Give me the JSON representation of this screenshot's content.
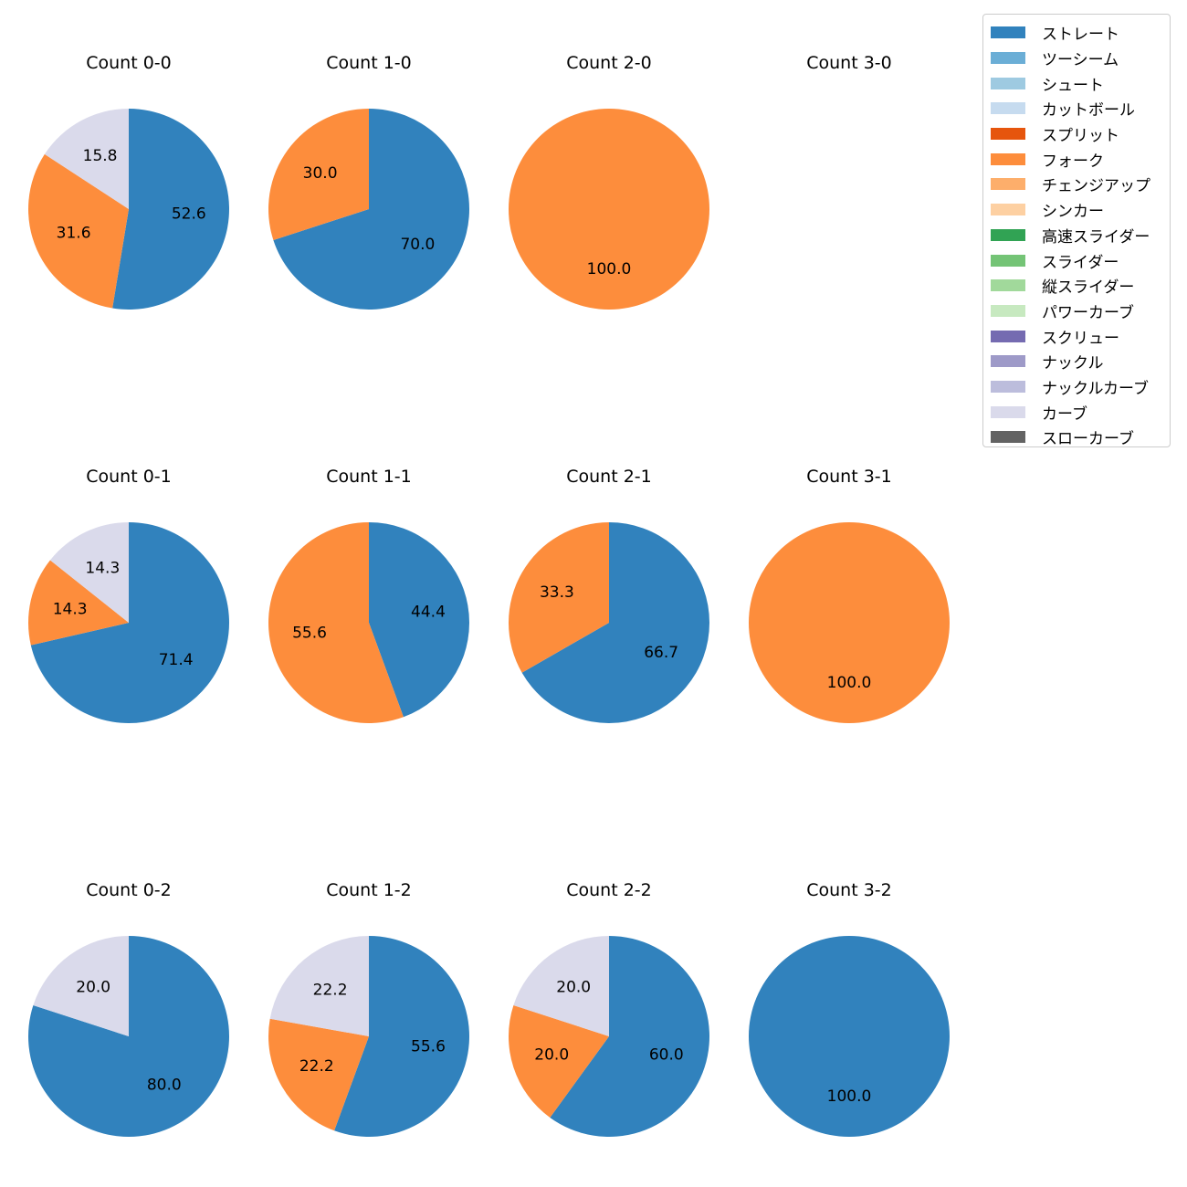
{
  "chart_data": {
    "type": "pie",
    "legend": {
      "placement": "top-right",
      "entries": [
        {
          "label": "ストレート",
          "color": "#3182bd"
        },
        {
          "label": "ツーシーム",
          "color": "#6baed6"
        },
        {
          "label": "シュート",
          "color": "#9ecae1"
        },
        {
          "label": "カットボール",
          "color": "#c6dbef"
        },
        {
          "label": "スプリット",
          "color": "#e6550d"
        },
        {
          "label": "フォーク",
          "color": "#fd8d3c"
        },
        {
          "label": "チェンジアップ",
          "color": "#fdae6b"
        },
        {
          "label": "シンカー",
          "color": "#fdd0a2"
        },
        {
          "label": "高速スライダー",
          "color": "#31a354"
        },
        {
          "label": "スライダー",
          "color": "#74c476"
        },
        {
          "label": "縦スライダー",
          "color": "#a1d99b"
        },
        {
          "label": "パワーカーブ",
          "color": "#c7e9c0"
        },
        {
          "label": "スクリュー",
          "color": "#756bb1"
        },
        {
          "label": "ナックル",
          "color": "#9e9ac8"
        },
        {
          "label": "ナックルカーブ",
          "color": "#bcbddc"
        },
        {
          "label": "カーブ",
          "color": "#dadaeb"
        },
        {
          "label": "スローカーブ",
          "color": "#636363"
        }
      ]
    },
    "pies": [
      {
        "title": "Count 0-0",
        "slices": [
          {
            "pitch": "ストレート",
            "value": 52.6
          },
          {
            "pitch": "フォーク",
            "value": 31.6
          },
          {
            "pitch": "カーブ",
            "value": 15.8
          }
        ]
      },
      {
        "title": "Count 1-0",
        "slices": [
          {
            "pitch": "ストレート",
            "value": 70.0
          },
          {
            "pitch": "フォーク",
            "value": 30.0
          }
        ]
      },
      {
        "title": "Count 2-0",
        "slices": [
          {
            "pitch": "フォーク",
            "value": 100.0
          }
        ]
      },
      {
        "title": "Count 3-0",
        "slices": []
      },
      {
        "title": "Count 0-1",
        "slices": [
          {
            "pitch": "ストレート",
            "value": 71.4
          },
          {
            "pitch": "フォーク",
            "value": 14.3
          },
          {
            "pitch": "カーブ",
            "value": 14.3
          }
        ]
      },
      {
        "title": "Count 1-1",
        "slices": [
          {
            "pitch": "ストレート",
            "value": 44.4
          },
          {
            "pitch": "フォーク",
            "value": 55.6
          }
        ]
      },
      {
        "title": "Count 2-1",
        "slices": [
          {
            "pitch": "ストレート",
            "value": 66.7
          },
          {
            "pitch": "フォーク",
            "value": 33.3
          }
        ]
      },
      {
        "title": "Count 3-1",
        "slices": [
          {
            "pitch": "フォーク",
            "value": 100.0
          }
        ]
      },
      {
        "title": "Count 0-2",
        "slices": [
          {
            "pitch": "ストレート",
            "value": 80.0
          },
          {
            "pitch": "カーブ",
            "value": 20.0
          }
        ]
      },
      {
        "title": "Count 1-2",
        "slices": [
          {
            "pitch": "ストレート",
            "value": 55.6
          },
          {
            "pitch": "フォーク",
            "value": 22.2
          },
          {
            "pitch": "カーブ",
            "value": 22.2
          }
        ]
      },
      {
        "title": "Count 2-2",
        "slices": [
          {
            "pitch": "ストレート",
            "value": 60.0
          },
          {
            "pitch": "フォーク",
            "value": 20.0
          },
          {
            "pitch": "カーブ",
            "value": 20.0
          }
        ]
      },
      {
        "title": "Count 3-2",
        "slices": [
          {
            "pitch": "ストレート",
            "value": 100.0
          }
        ]
      }
    ]
  }
}
